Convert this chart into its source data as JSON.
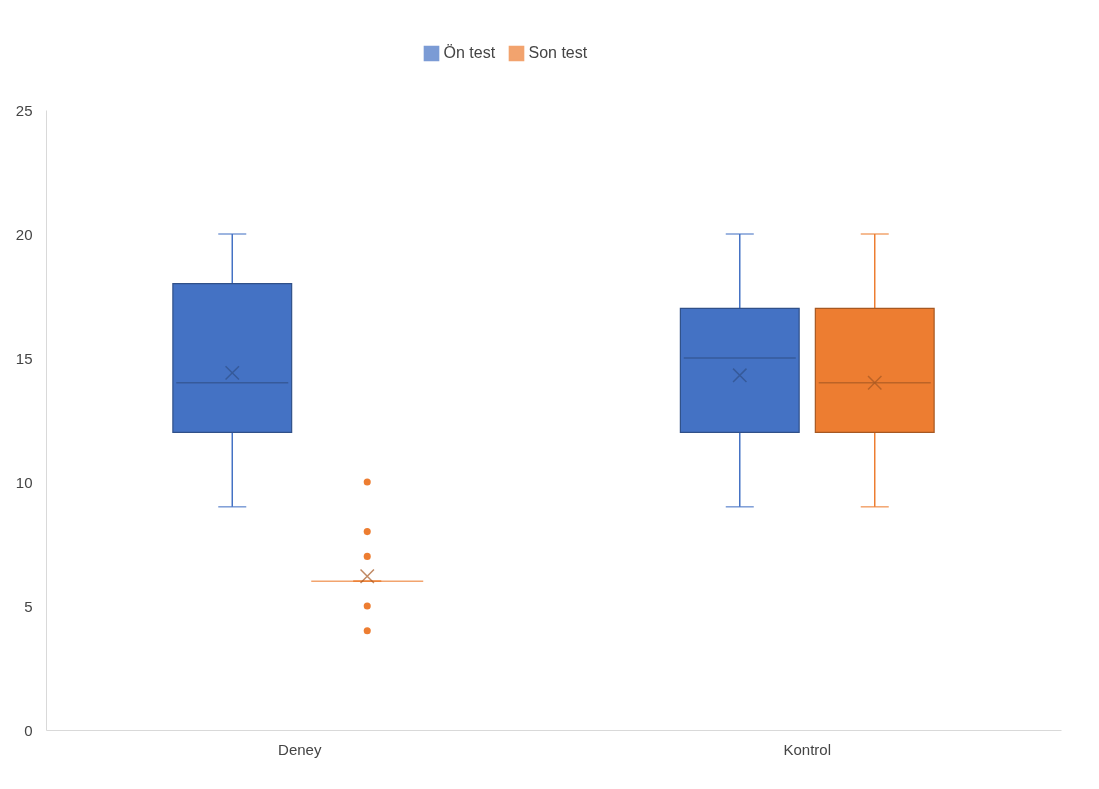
{
  "chart_data": {
    "type": "box",
    "categories": [
      "Deney",
      "Kontrol"
    ],
    "ylim": [
      0,
      25
    ],
    "yticks": [
      0,
      5,
      10,
      15,
      20,
      25
    ],
    "grid": false,
    "legend": "top",
    "series": [
      {
        "name": "Ön test",
        "color": "#4472c4",
        "boxes": [
          {
            "low": 9,
            "q1": 12,
            "median": 14,
            "q3": 18,
            "high": 20,
            "mean": 14.4
          },
          {
            "low": 9,
            "q1": 12,
            "median": 15,
            "q3": 17,
            "high": 20,
            "mean": 14.3
          }
        ]
      },
      {
        "name": "Son test",
        "color": "#ed7d31",
        "boxes": [
          {
            "low": 6,
            "q1": 6,
            "median": 6,
            "q3": 6,
            "high": 6,
            "mean": 6.2,
            "outliers": [
              4,
              5,
              7,
              8,
              10
            ]
          },
          {
            "low": 9,
            "q1": 12,
            "median": 14,
            "q3": 17,
            "high": 20,
            "mean": 14
          }
        ]
      }
    ]
  }
}
